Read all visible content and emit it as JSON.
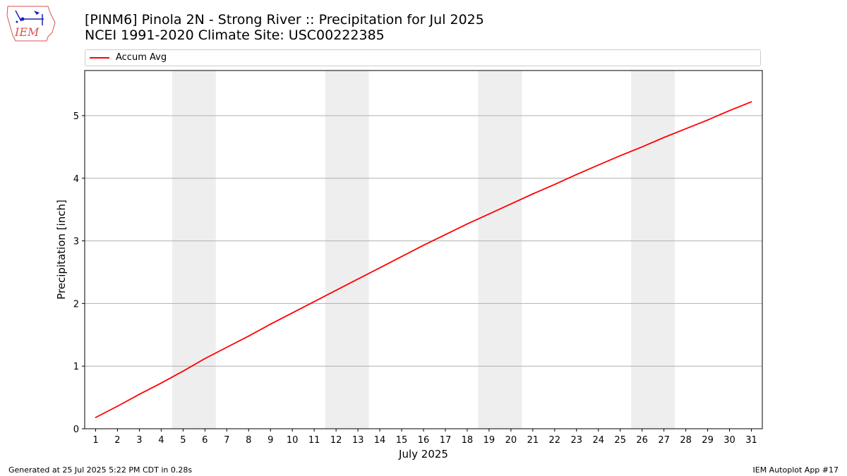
{
  "header": {
    "title_line1": "[PINM6] Pinola 2N - Strong River :: Precipitation for Jul 2025",
    "title_line2": "NCEI 1991-2020 Climate Site: USC00222385",
    "logo_text": "IEM"
  },
  "footer": {
    "left_text": "Generated at 25 Jul 2025 5:22 PM CDT in 0.28s",
    "right_text": "IEM Autoplot App #17"
  },
  "colors": {
    "series": "#ff0000",
    "weekend_band": "#eeeeee",
    "grid": "#b0b0b0"
  },
  "chart_data": {
    "type": "line",
    "xlabel": "July 2025",
    "ylabel": "Precipitation [inch]",
    "xlim": [
      0.5,
      31.5
    ],
    "ylim": [
      0,
      5.72
    ],
    "x_ticks": [
      1,
      2,
      3,
      4,
      5,
      6,
      7,
      8,
      9,
      10,
      11,
      12,
      13,
      14,
      15,
      16,
      17,
      18,
      19,
      20,
      21,
      22,
      23,
      24,
      25,
      26,
      27,
      28,
      29,
      30,
      31
    ],
    "y_ticks": [
      0,
      1,
      2,
      3,
      4,
      5
    ],
    "grid": "horizontal",
    "legend_position": "top",
    "shaded_x_ranges": [
      [
        4.5,
        6.5
      ],
      [
        11.5,
        13.5
      ],
      [
        18.5,
        20.5
      ],
      [
        25.5,
        27.5
      ]
    ],
    "series": [
      {
        "name": "Accum Avg",
        "x": [
          1,
          2,
          3,
          4,
          5,
          6,
          7,
          8,
          9,
          10,
          11,
          12,
          13,
          14,
          15,
          16,
          17,
          18,
          19,
          20,
          21,
          22,
          23,
          24,
          25,
          26,
          27,
          28,
          29,
          30,
          31
        ],
        "values": [
          0.18,
          0.36,
          0.55,
          0.73,
          0.92,
          1.12,
          1.3,
          1.48,
          1.67,
          1.85,
          2.03,
          2.21,
          2.39,
          2.57,
          2.75,
          2.93,
          3.1,
          3.27,
          3.43,
          3.59,
          3.75,
          3.9,
          4.06,
          4.21,
          4.36,
          4.5,
          4.65,
          4.79,
          4.93,
          5.08,
          5.22
        ]
      }
    ]
  }
}
